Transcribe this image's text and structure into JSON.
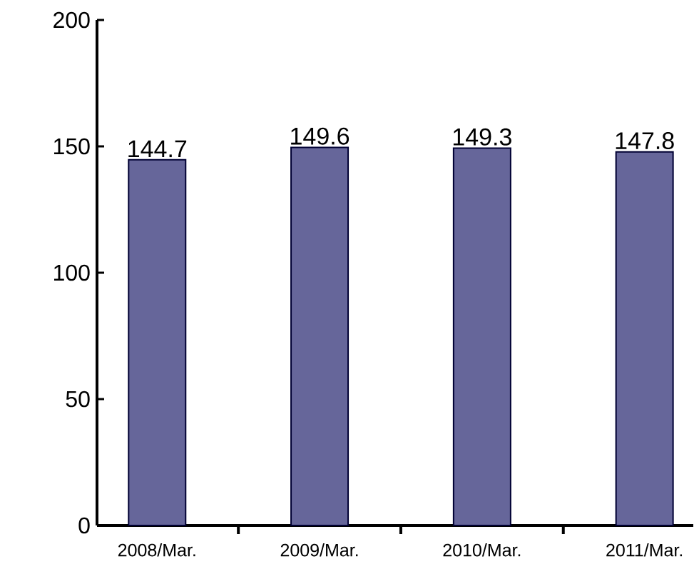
{
  "chart_data": {
    "type": "bar",
    "categories": [
      "2008/Mar.",
      "2009/Mar.",
      "2010/Mar.",
      "2011/Mar."
    ],
    "values": [
      144.7,
      149.6,
      149.3,
      147.8
    ],
    "color": "#66669a",
    "ylim": [
      0,
      200
    ],
    "yticks": [
      0,
      50,
      100,
      150,
      200
    ],
    "data_labels": true
  }
}
